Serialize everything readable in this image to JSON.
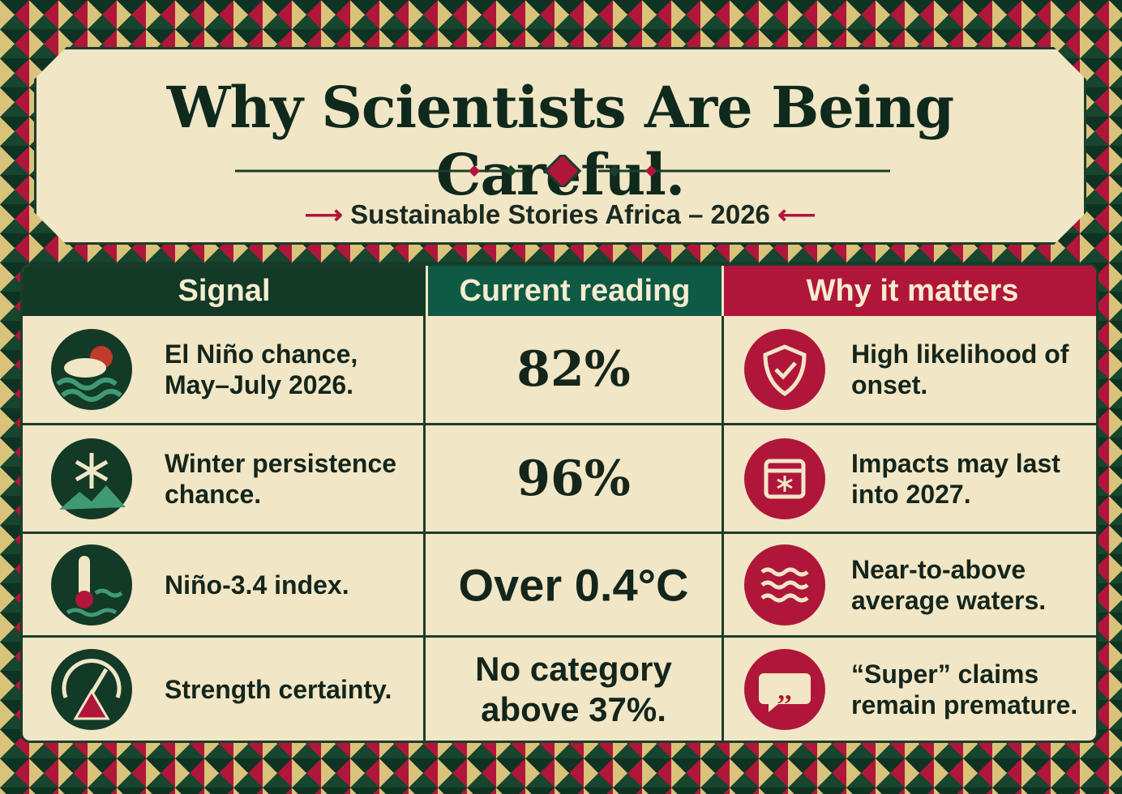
{
  "header": {
    "title": "Why Scientists Are Being Careful.",
    "subtitle": "Sustainable Stories Africa – 2026"
  },
  "table": {
    "columns": [
      "Signal",
      "Current reading",
      "Why it matters"
    ],
    "rows": [
      [
        "El Niño chance, May–July 2026.",
        "82%",
        "High likelihood of onset."
      ],
      [
        "Winter persistence chance.",
        "96%",
        "Impacts may last into 2027."
      ],
      [
        "Niño-3.4 index.",
        "Over 0.4°C",
        "Near-to-above average waters."
      ],
      [
        "Strength certainty.",
        "No category above 37%.",
        "“Super” claims remain premature."
      ]
    ]
  }
}
